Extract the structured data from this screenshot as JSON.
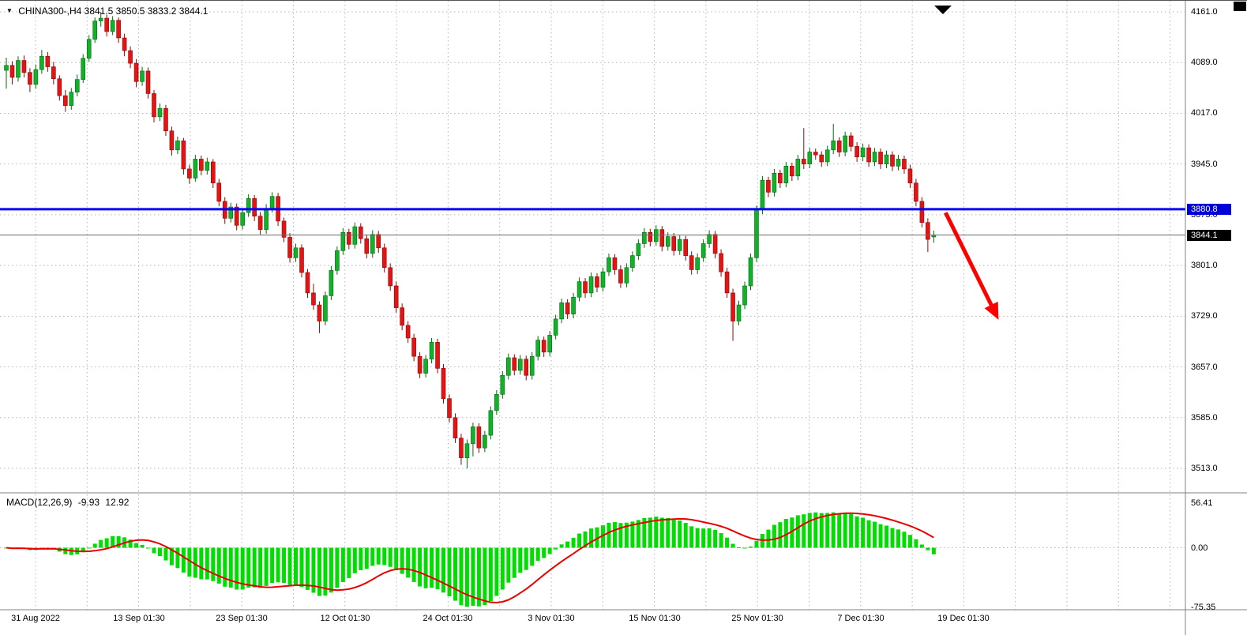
{
  "header": {
    "symbol_timeframe": "CHINA300-,H4",
    "ohlc_text": "3841.5 3850.5 3833.2 3844.1"
  },
  "macd_panel": {
    "name": "MACD(12,26,9)",
    "value": "-9.93",
    "signal": "12.92"
  },
  "colors": {
    "up_fill": "#12b12a",
    "up_stroke": "#056a12",
    "down_fill": "#e41414",
    "down_stroke": "#8c0808",
    "macd_bar": "#00dd00",
    "macd_signal": "#e80000",
    "hline": "#0000ff",
    "current_line": "#6a6a6a",
    "grid": "#b4b4b4",
    "separator": "#808080",
    "arrow": "#ff0000"
  },
  "chart_data": {
    "type": "candlestick",
    "symbol": "CHINA300-",
    "timeframe": "H4",
    "ohlc_display": {
      "open": 3841.5,
      "high": 3850.5,
      "low": 3833.2,
      "close": 3844.1
    },
    "price_axis": {
      "labels": [
        "4161.0",
        "4089.0",
        "4017.0",
        "3945.0",
        "3873.0",
        "3801.0",
        "3729.0",
        "3657.0",
        "3585.0",
        "3513.0"
      ],
      "values": [
        4161.0,
        4089.0,
        4017.0,
        3945.0,
        3873.0,
        3801.0,
        3729.0,
        3657.0,
        3585.0,
        3513.0
      ]
    },
    "time_axis": {
      "labels": [
        "31 Aug 2022",
        "13 Sep 01:30",
        "23 Sep 01:30",
        "12 Oct 01:30",
        "24 Oct 01:30",
        "3 Nov 01:30",
        "15 Nov 01:30",
        "25 Nov 01:30",
        "7 Dec 01:30",
        "19 Dec 01:30"
      ]
    },
    "overlays": {
      "hline": {
        "value": 3880.8,
        "label": "3880.8",
        "color": "#0000ff"
      },
      "current_price": {
        "value": 3844.1,
        "label": "3844.1"
      },
      "trend_arrow": {
        "from_bar": 159,
        "from_price": 3876,
        "to_bar": 167.5,
        "to_price": 3732,
        "color": "#ff0000"
      }
    },
    "macd": {
      "params": {
        "fast": 12,
        "slow": 26,
        "signal": 9
      },
      "display_value": -9.93,
      "display_signal": 12.92,
      "axis_labels": [
        "56.41",
        "0.00",
        "-75.35"
      ],
      "axis_values": [
        56.41,
        0.0,
        -75.35
      ]
    },
    "candles": [
      [
        4078,
        4096,
        4052,
        4085
      ],
      [
        4085,
        4091,
        4058,
        4068
      ],
      [
        4068,
        4098,
        4062,
        4092
      ],
      [
        4092,
        4099,
        4068,
        4075
      ],
      [
        4075,
        4081,
        4047,
        4058
      ],
      [
        4058,
        4086,
        4052,
        4079
      ],
      [
        4079,
        4107,
        4073,
        4098
      ],
      [
        4098,
        4104,
        4076,
        4083
      ],
      [
        4083,
        4090,
        4058,
        4066
      ],
      [
        4066,
        4071,
        4035,
        4042
      ],
      [
        4042,
        4050,
        4019,
        4028
      ],
      [
        4028,
        4053,
        4022,
        4047
      ],
      [
        4047,
        4072,
        4041,
        4065
      ],
      [
        4065,
        4101,
        4060,
        4095
      ],
      [
        4095,
        4128,
        4090,
        4122
      ],
      [
        4122,
        4153,
        4117,
        4148
      ],
      [
        4148,
        4161,
        4140,
        4152
      ],
      [
        4152,
        4157,
        4126,
        4133
      ],
      [
        4133,
        4155,
        4128,
        4149
      ],
      [
        4149,
        4153,
        4117,
        4124
      ],
      [
        4124,
        4130,
        4098,
        4106
      ],
      [
        4106,
        4112,
        4081,
        4088
      ],
      [
        4088,
        4094,
        4054,
        4062
      ],
      [
        4062,
        4083,
        4056,
        4077
      ],
      [
        4077,
        4082,
        4038,
        4045
      ],
      [
        4045,
        4050,
        4004,
        4012
      ],
      [
        4012,
        4031,
        4006,
        4024
      ],
      [
        4024,
        4029,
        3985,
        3992
      ],
      [
        3992,
        3998,
        3957,
        3965
      ],
      [
        3965,
        3984,
        3959,
        3978
      ],
      [
        3978,
        3982,
        3930,
        3938
      ],
      [
        3938,
        3944,
        3917,
        3925
      ],
      [
        3925,
        3958,
        3920,
        3952
      ],
      [
        3952,
        3957,
        3929,
        3936
      ],
      [
        3936,
        3954,
        3930,
        3948
      ],
      [
        3948,
        3952,
        3911,
        3918
      ],
      [
        3918,
        3924,
        3885,
        3892
      ],
      [
        3892,
        3898,
        3860,
        3868
      ],
      [
        3868,
        3890,
        3862,
        3884
      ],
      [
        3884,
        3889,
        3851,
        3858
      ],
      [
        3858,
        3882,
        3852,
        3876
      ],
      [
        3876,
        3902,
        3870,
        3896
      ],
      [
        3896,
        3901,
        3864,
        3871
      ],
      [
        3871,
        3877,
        3845,
        3852
      ],
      [
        3852,
        3888,
        3846,
        3882
      ],
      [
        3882,
        3905,
        3876,
        3899
      ],
      [
        3899,
        3904,
        3857,
        3864
      ],
      [
        3864,
        3869,
        3834,
        3841
      ],
      [
        3841,
        3847,
        3805,
        3812
      ],
      [
        3812,
        3832,
        3806,
        3826
      ],
      [
        3826,
        3831,
        3784,
        3791
      ],
      [
        3791,
        3796,
        3755,
        3762
      ],
      [
        3762,
        3775,
        3738,
        3745
      ],
      [
        3745,
        3750,
        3705,
        3722
      ],
      [
        3722,
        3764,
        3716,
        3758
      ],
      [
        3758,
        3800,
        3752,
        3794
      ],
      [
        3794,
        3828,
        3788,
        3822
      ],
      [
        3822,
        3854,
        3816,
        3848
      ],
      [
        3848,
        3853,
        3824,
        3831
      ],
      [
        3831,
        3862,
        3825,
        3856
      ],
      [
        3856,
        3861,
        3832,
        3839
      ],
      [
        3839,
        3845,
        3811,
        3818
      ],
      [
        3818,
        3851,
        3812,
        3845
      ],
      [
        3845,
        3850,
        3819,
        3826
      ],
      [
        3826,
        3832,
        3791,
        3798
      ],
      [
        3798,
        3804,
        3765,
        3772
      ],
      [
        3772,
        3778,
        3734,
        3741
      ],
      [
        3741,
        3747,
        3709,
        3716
      ],
      [
        3716,
        3722,
        3691,
        3698
      ],
      [
        3698,
        3704,
        3665,
        3672
      ],
      [
        3672,
        3678,
        3641,
        3648
      ],
      [
        3648,
        3674,
        3642,
        3668
      ],
      [
        3668,
        3698,
        3662,
        3692
      ],
      [
        3692,
        3697,
        3648,
        3655
      ],
      [
        3655,
        3661,
        3605,
        3612
      ],
      [
        3612,
        3618,
        3578,
        3585
      ],
      [
        3585,
        3591,
        3549,
        3556
      ],
      [
        3556,
        3562,
        3518,
        3528
      ],
      [
        3528,
        3554,
        3513,
        3548
      ],
      [
        3548,
        3578,
        3530,
        3572
      ],
      [
        3572,
        3577,
        3535,
        3542
      ],
      [
        3542,
        3566,
        3536,
        3560
      ],
      [
        3560,
        3601,
        3554,
        3595
      ],
      [
        3595,
        3624,
        3589,
        3618
      ],
      [
        3618,
        3651,
        3612,
        3645
      ],
      [
        3645,
        3676,
        3639,
        3670
      ],
      [
        3670,
        3675,
        3645,
        3652
      ],
      [
        3652,
        3674,
        3646,
        3668
      ],
      [
        3668,
        3673,
        3638,
        3645
      ],
      [
        3645,
        3678,
        3639,
        3672
      ],
      [
        3672,
        3701,
        3666,
        3695
      ],
      [
        3695,
        3700,
        3671,
        3678
      ],
      [
        3678,
        3708,
        3672,
        3702
      ],
      [
        3702,
        3731,
        3696,
        3725
      ],
      [
        3725,
        3754,
        3719,
        3748
      ],
      [
        3748,
        3753,
        3725,
        3732
      ],
      [
        3732,
        3762,
        3726,
        3756
      ],
      [
        3756,
        3784,
        3750,
        3778
      ],
      [
        3778,
        3783,
        3755,
        3762
      ],
      [
        3762,
        3791,
        3756,
        3785
      ],
      [
        3785,
        3790,
        3763,
        3770
      ],
      [
        3770,
        3798,
        3764,
        3792
      ],
      [
        3792,
        3818,
        3786,
        3812
      ],
      [
        3812,
        3817,
        3788,
        3795
      ],
      [
        3795,
        3801,
        3769,
        3776
      ],
      [
        3776,
        3804,
        3770,
        3798
      ],
      [
        3798,
        3821,
        3792,
        3815
      ],
      [
        3815,
        3838,
        3809,
        3832
      ],
      [
        3832,
        3854,
        3826,
        3848
      ],
      [
        3848,
        3853,
        3828,
        3835
      ],
      [
        3835,
        3858,
        3829,
        3852
      ],
      [
        3852,
        3857,
        3821,
        3828
      ],
      [
        3828,
        3848,
        3822,
        3842
      ],
      [
        3842,
        3847,
        3815,
        3822
      ],
      [
        3822,
        3844,
        3816,
        3838
      ],
      [
        3838,
        3843,
        3808,
        3815
      ],
      [
        3815,
        3821,
        3788,
        3795
      ],
      [
        3795,
        3818,
        3789,
        3812
      ],
      [
        3812,
        3838,
        3806,
        3832
      ],
      [
        3832,
        3851,
        3826,
        3845
      ],
      [
        3845,
        3850,
        3811,
        3818
      ],
      [
        3818,
        3824,
        3785,
        3792
      ],
      [
        3792,
        3798,
        3755,
        3762
      ],
      [
        3762,
        3768,
        3694,
        3722
      ],
      [
        3722,
        3751,
        3716,
        3745
      ],
      [
        3745,
        3778,
        3739,
        3772
      ],
      [
        3772,
        3818,
        3766,
        3812
      ],
      [
        3812,
        3886,
        3806,
        3880
      ],
      [
        3880,
        3928,
        3874,
        3922
      ],
      [
        3922,
        3927,
        3898,
        3905
      ],
      [
        3905,
        3938,
        3899,
        3932
      ],
      [
        3932,
        3937,
        3911,
        3918
      ],
      [
        3918,
        3948,
        3912,
        3942
      ],
      [
        3942,
        3947,
        3921,
        3928
      ],
      [
        3928,
        3958,
        3922,
        3952
      ],
      [
        3952,
        3996,
        3938,
        3945
      ],
      [
        3945,
        3968,
        3939,
        3962
      ],
      [
        3962,
        3967,
        3951,
        3958
      ],
      [
        3958,
        3963,
        3941,
        3948
      ],
      [
        3948,
        3971,
        3942,
        3965
      ],
      [
        3965,
        4002,
        3959,
        3978
      ],
      [
        3978,
        3983,
        3955,
        3962
      ],
      [
        3962,
        3991,
        3956,
        3985
      ],
      [
        3985,
        3990,
        3963,
        3970
      ],
      [
        3970,
        3976,
        3948,
        3955
      ],
      [
        3955,
        3974,
        3949,
        3968
      ],
      [
        3968,
        3973,
        3941,
        3948
      ],
      [
        3948,
        3968,
        3942,
        3962
      ],
      [
        3962,
        3967,
        3938,
        3945
      ],
      [
        3945,
        3964,
        3939,
        3958
      ],
      [
        3958,
        3963,
        3935,
        3942
      ],
      [
        3942,
        3958,
        3936,
        3952
      ],
      [
        3952,
        3957,
        3931,
        3938
      ],
      [
        3938,
        3944,
        3911,
        3918
      ],
      [
        3918,
        3924,
        3885,
        3892
      ],
      [
        3892,
        3898,
        3855,
        3862
      ],
      [
        3862,
        3868,
        3820,
        3838
      ],
      [
        3841.5,
        3850.5,
        3833.2,
        3844.1
      ]
    ]
  }
}
